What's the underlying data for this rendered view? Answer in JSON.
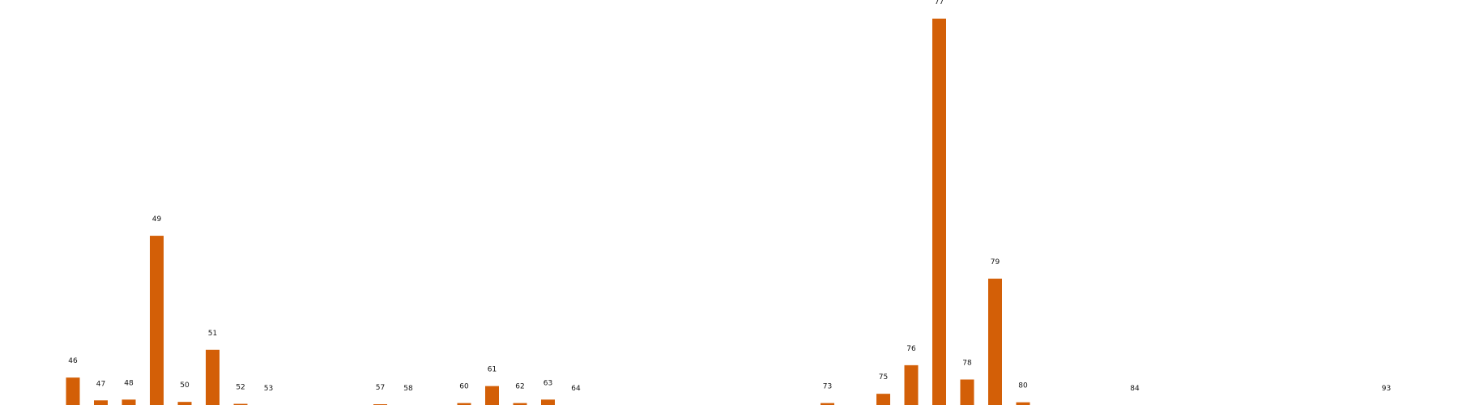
{
  "chart_data": {
    "type": "bar",
    "title": "",
    "xlabel": "",
    "ylabel": "",
    "grid": false,
    "bar_color": "#d35f07",
    "ylim": [
      0,
      100
    ],
    "categories": [
      46,
      47,
      48,
      49,
      50,
      51,
      52,
      53,
      57,
      58,
      60,
      61,
      62,
      63,
      64,
      73,
      75,
      76,
      77,
      78,
      79,
      80,
      84,
      93
    ],
    "values": [
      7.1,
      1.2,
      1.4,
      43.8,
      0.8,
      14.3,
      0.3,
      0.0,
      0.2,
      0.0,
      0.5,
      4.9,
      0.5,
      1.4,
      0.0,
      0.5,
      2.9,
      10.3,
      100.0,
      6.6,
      32.7,
      0.7,
      0.0,
      0.0
    ],
    "data_labels": [
      "46",
      "47",
      "48",
      "49",
      "50",
      "51",
      "52",
      "53",
      "57",
      "58",
      "60",
      "61",
      "62",
      "63",
      "64",
      "73",
      "75",
      "76",
      "77",
      "78",
      "79",
      "80",
      "84",
      "93"
    ]
  }
}
